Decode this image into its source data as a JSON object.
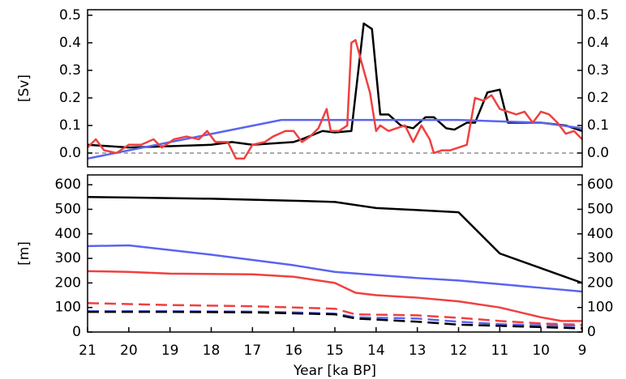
{
  "chart_data": [
    {
      "type": "line",
      "ylabel": "[Sv]",
      "xlim": [
        21,
        9
      ],
      "ylim": [
        -0.05,
        0.52
      ],
      "yticks": [
        {
          "value": 0,
          "label": "0.0"
        },
        0.1,
        0.2,
        0.3,
        0.4,
        0.5
      ],
      "right_axis": true,
      "reference_line": 0,
      "series": [
        {
          "color": "#000000",
          "dash": false,
          "x": [
            21,
            20,
            19,
            18,
            17.5,
            17,
            16,
            15.8,
            15.3,
            15,
            14.6,
            14.3,
            14.1,
            13.9,
            13.7,
            13.4,
            13.1,
            12.8,
            12.6,
            12.3,
            12.1,
            11.8,
            11.6,
            11.3,
            11,
            10.8,
            10,
            9.4,
            9
          ],
          "values": [
            0.03,
            0.02,
            0.025,
            0.03,
            0.04,
            0.03,
            0.04,
            0.05,
            0.08,
            0.075,
            0.08,
            0.47,
            0.45,
            0.14,
            0.14,
            0.1,
            0.09,
            0.13,
            0.13,
            0.09,
            0.085,
            0.11,
            0.11,
            0.22,
            0.23,
            0.11,
            0.11,
            0.1,
            0.08
          ]
        },
        {
          "color": "#5a64f0",
          "dash": false,
          "x": [
            21,
            16.3,
            12,
            11,
            10,
            9
          ],
          "values": [
            -0.02,
            0.12,
            0.12,
            0.115,
            0.11,
            0.09
          ]
        },
        {
          "color": "#f04040",
          "dash": false,
          "x": [
            21,
            20.8,
            20.6,
            20.3,
            20,
            19.7,
            19.4,
            19.2,
            18.9,
            18.6,
            18.3,
            18.1,
            17.9,
            17.6,
            17.4,
            17.2,
            17,
            16.7,
            16.5,
            16.2,
            16,
            15.8,
            15.6,
            15.4,
            15.2,
            15.1,
            14.9,
            14.7,
            14.6,
            14.5,
            14.3,
            14.15,
            14,
            13.9,
            13.7,
            13.5,
            13.3,
            13.1,
            12.9,
            12.7,
            12.6,
            12.4,
            12.2,
            12,
            11.8,
            11.6,
            11.4,
            11.2,
            11,
            10.8,
            10.6,
            10.4,
            10.2,
            10,
            9.8,
            9.6,
            9.4,
            9.2,
            9
          ],
          "values": [
            0.02,
            0.05,
            0.01,
            0.0,
            0.03,
            0.03,
            0.05,
            0.02,
            0.05,
            0.06,
            0.05,
            0.08,
            0.04,
            0.04,
            -0.02,
            -0.02,
            0.03,
            0.04,
            0.06,
            0.08,
            0.08,
            0.04,
            0.06,
            0.09,
            0.16,
            0.08,
            0.08,
            0.1,
            0.4,
            0.41,
            0.3,
            0.22,
            0.08,
            0.1,
            0.08,
            0.09,
            0.1,
            0.04,
            0.1,
            0.05,
            0.0,
            0.01,
            0.01,
            0.02,
            0.03,
            0.2,
            0.19,
            0.21,
            0.16,
            0.15,
            0.14,
            0.15,
            0.11,
            0.15,
            0.14,
            0.11,
            0.07,
            0.08,
            0.05
          ]
        }
      ]
    },
    {
      "type": "line",
      "ylabel": "[m]",
      "xlabel": "Year [ka BP]",
      "xlim": [
        21,
        9
      ],
      "xticks": [
        21,
        20,
        19,
        18,
        17,
        16,
        15,
        14,
        13,
        12,
        11,
        10,
        9
      ],
      "ylim": [
        0,
        640
      ],
      "yticks": [
        0,
        100,
        200,
        300,
        400,
        500,
        600
      ],
      "right_axis": true,
      "series": [
        {
          "color": "#000000",
          "dash": false,
          "x": [
            21,
            20,
            18,
            16,
            15,
            14,
            13,
            12,
            11,
            10,
            9
          ],
          "values": [
            550,
            548,
            543,
            535,
            530,
            505,
            497,
            488,
            320,
            260,
            200
          ]
        },
        {
          "color": "#5a64f0",
          "dash": false,
          "x": [
            21,
            20,
            18,
            16,
            15,
            14,
            13,
            12,
            11,
            10,
            9
          ],
          "values": [
            350,
            353,
            315,
            272,
            245,
            232,
            220,
            210,
            195,
            180,
            165
          ]
        },
        {
          "color": "#f04040",
          "dash": false,
          "x": [
            21,
            20,
            19,
            17,
            16,
            15,
            14.5,
            14,
            13,
            12,
            11,
            10,
            9.5,
            9
          ],
          "values": [
            248,
            245,
            238,
            235,
            225,
            200,
            160,
            150,
            140,
            125,
            100,
            60,
            45,
            45
          ]
        },
        {
          "color": "#f04040",
          "dash": true,
          "x": [
            21,
            19,
            17,
            16,
            15,
            14.5,
            13,
            12,
            11,
            10,
            9
          ],
          "values": [
            118,
            110,
            105,
            100,
            95,
            72,
            68,
            58,
            45,
            35,
            30
          ]
        },
        {
          "color": "#5a64f0",
          "dash": true,
          "x": [
            21,
            19,
            17,
            16,
            15,
            14.5,
            13,
            12,
            11,
            10,
            9
          ],
          "values": [
            85,
            85,
            83,
            80,
            75,
            60,
            55,
            42,
            32,
            27,
            25
          ]
        },
        {
          "color": "#000000",
          "dash": true,
          "x": [
            21,
            19,
            17,
            15,
            14.5,
            13,
            12,
            11,
            10,
            9
          ],
          "values": [
            82,
            82,
            80,
            72,
            55,
            42,
            30,
            25,
            20,
            15
          ]
        }
      ]
    }
  ]
}
